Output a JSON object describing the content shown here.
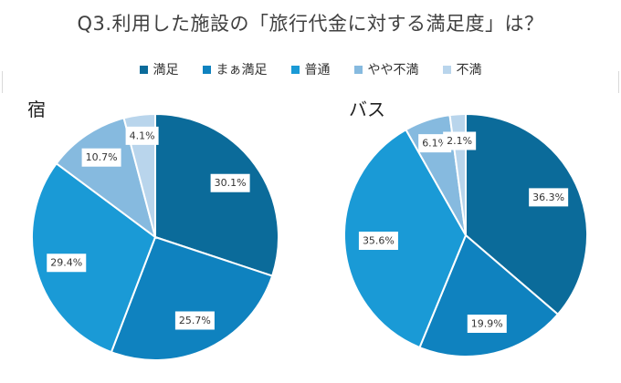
{
  "title": "Q3.利用した施設の「旅行代金に対する満足度」は？",
  "legend": [
    {
      "label": "満足",
      "color": "#0b6b9a"
    },
    {
      "label": "まぁ満足",
      "color": "#0f82bf"
    },
    {
      "label": "普通",
      "color": "#1a9ad6"
    },
    {
      "label": "やや不満",
      "color": "#86badf"
    },
    {
      "label": "不満",
      "color": "#b9d5ec"
    }
  ],
  "chart_data": [
    {
      "type": "pie",
      "title": "宿",
      "categories": [
        "満足",
        "まぁ満足",
        "普通",
        "やや不満",
        "不満"
      ],
      "values": [
        30.1,
        25.7,
        29.4,
        10.7,
        4.1
      ],
      "labels": [
        "30.1%",
        "25.7%",
        "29.4%",
        "10.7%",
        "4.1%"
      ]
    },
    {
      "type": "pie",
      "title": "バス",
      "categories": [
        "満足",
        "まぁ満足",
        "普通",
        "やや不満",
        "不満"
      ],
      "values": [
        36.3,
        19.9,
        35.6,
        6.1,
        2.1
      ],
      "labels": [
        "36.3%",
        "19.9%",
        "35.6%",
        "6.1%",
        "2.1%"
      ]
    }
  ]
}
